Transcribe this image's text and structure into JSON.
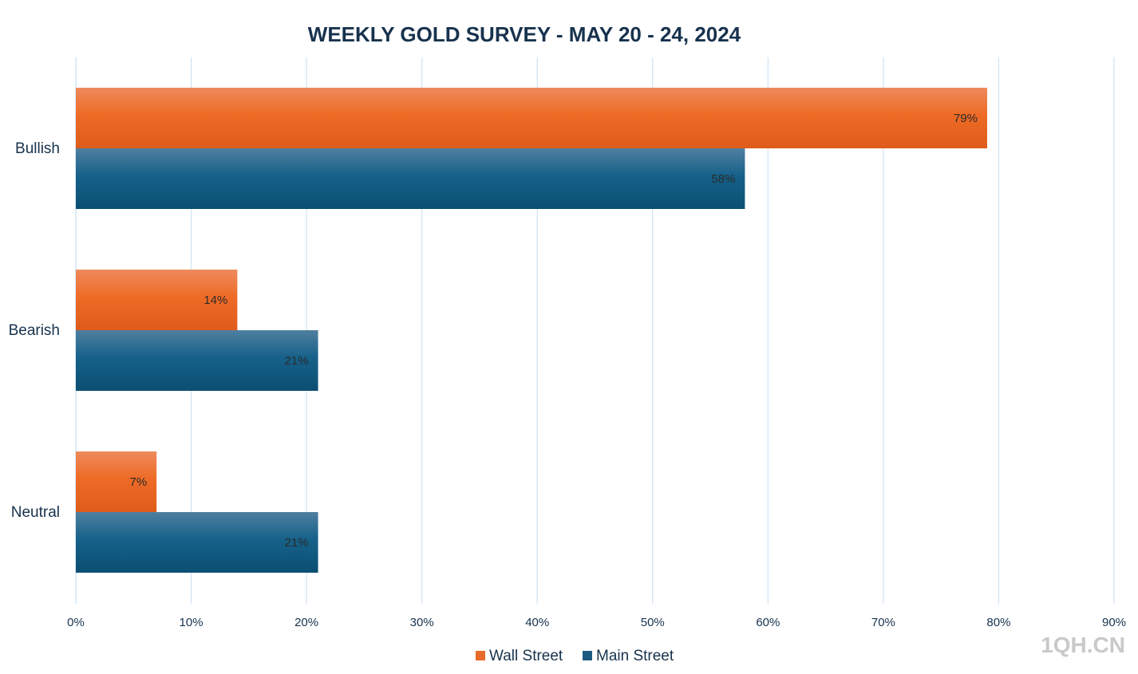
{
  "chart_data": {
    "type": "bar",
    "orientation": "horizontal",
    "title": "WEEKLY GOLD SURVEY - MAY 20 - 24, 2024",
    "categories": [
      "Bullish",
      "Bearish",
      "Neutral"
    ],
    "series": [
      {
        "name": "Wall Street",
        "values": [
          79,
          14,
          7
        ],
        "labels": [
          "79%",
          "14%",
          "7%"
        ],
        "color": "#e8692a"
      },
      {
        "name": "Main Street",
        "values": [
          58,
          21,
          21
        ],
        "labels": [
          "58%",
          "21%",
          "21%"
        ],
        "color": "#1a5a80"
      }
    ],
    "xlim": [
      0,
      90
    ],
    "x_ticks": [
      "0%",
      "10%",
      "20%",
      "30%",
      "40%",
      "50%",
      "60%",
      "70%",
      "80%",
      "90%"
    ],
    "grid": "vertical",
    "legend_position": "bottom",
    "xlabel": "",
    "ylabel": ""
  },
  "watermark": "1QH.CN"
}
